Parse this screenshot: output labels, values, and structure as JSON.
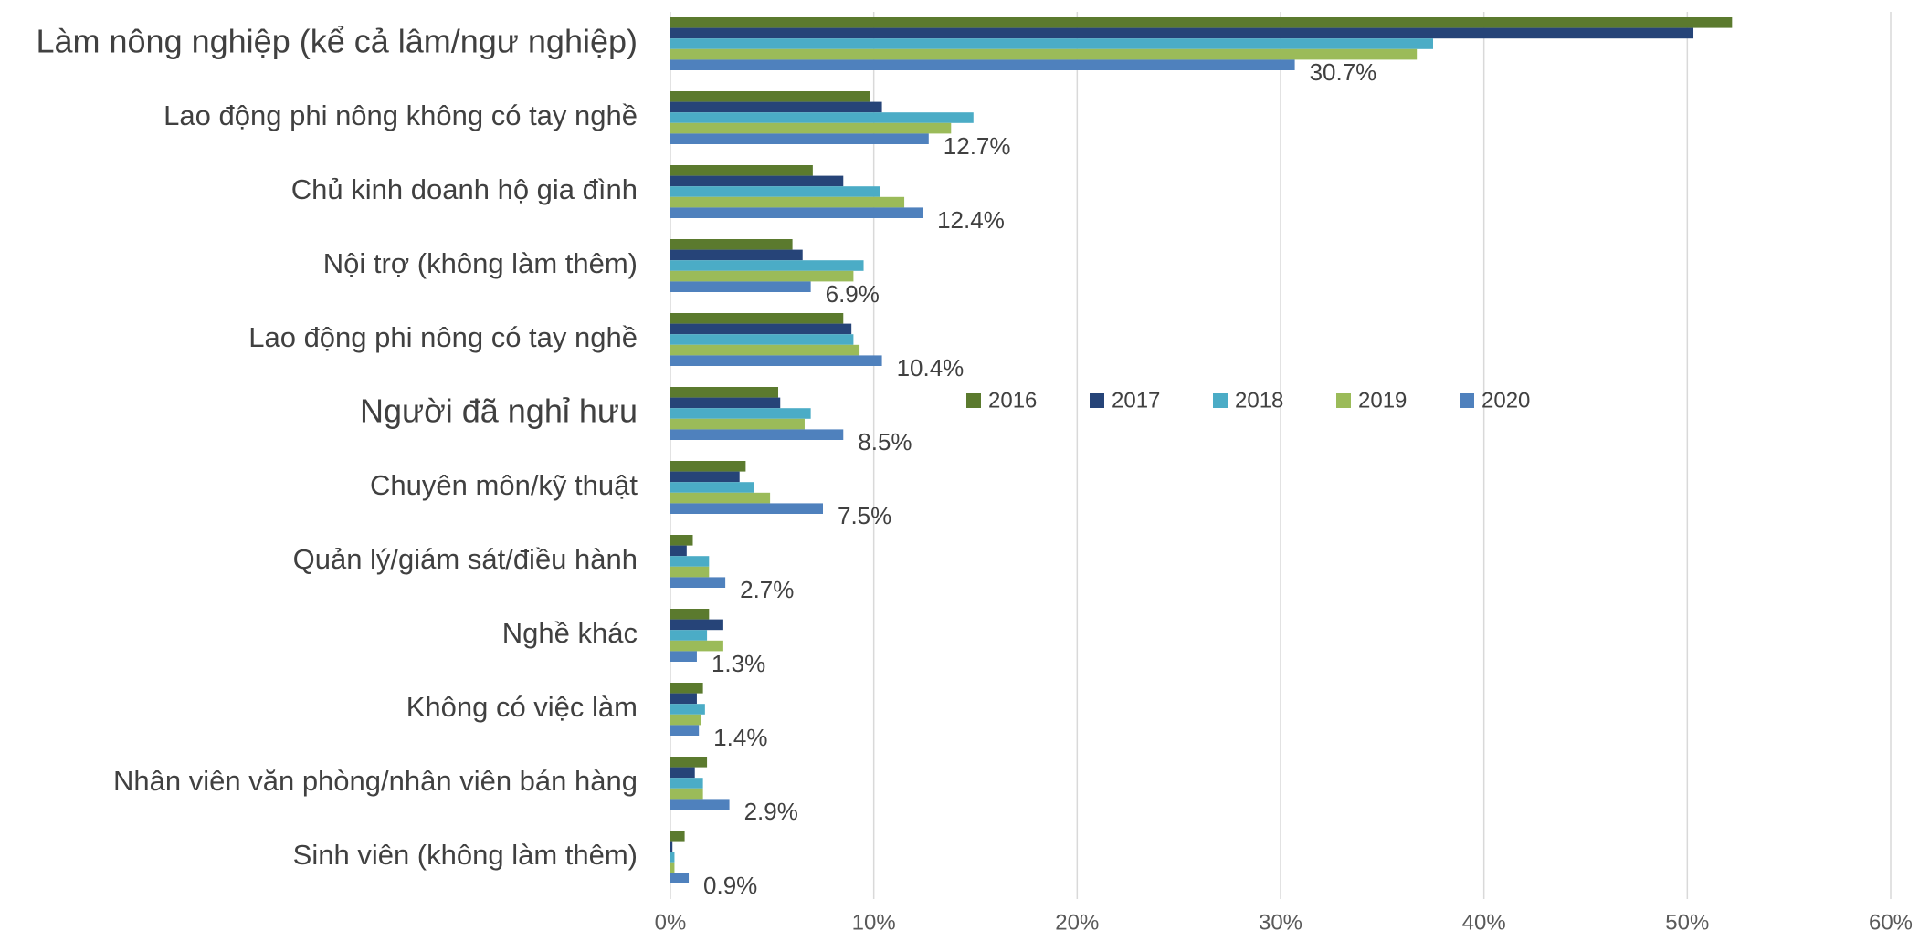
{
  "chart_data": {
    "type": "bar",
    "orientation": "horizontal",
    "categories": [
      "Làm nông nghiệp (kể cả lâm/ngư nghiệp)",
      "Lao động phi nông không có tay nghề",
      "Chủ kinh doanh hộ gia đình",
      "Nội trợ (không làm thêm)",
      "Lao động phi nông có tay nghề",
      "Người đã nghỉ hưu",
      "Chuyên môn/kỹ thuật",
      "Quản lý/giám sát/điều hành",
      "Nghề khác",
      "Không có việc làm",
      "Nhân viên văn phòng/nhân viên bán hàng",
      "Sinh viên (không làm thêm)"
    ],
    "series": [
      {
        "name": "2016",
        "color": "#5b7a2e",
        "values": [
          52.2,
          9.8,
          7.0,
          6.0,
          8.5,
          5.3,
          3.7,
          1.1,
          1.9,
          1.6,
          1.8,
          0.7
        ]
      },
      {
        "name": "2017",
        "color": "#264478",
        "values": [
          50.3,
          10.4,
          8.5,
          6.5,
          8.9,
          5.4,
          3.4,
          0.8,
          2.6,
          1.3,
          1.2,
          0.1
        ]
      },
      {
        "name": "2018",
        "color": "#4bacc6",
        "values": [
          37.5,
          14.9,
          10.3,
          9.5,
          9.0,
          6.9,
          4.1,
          1.9,
          1.8,
          1.7,
          1.6,
          0.2
        ]
      },
      {
        "name": "2019",
        "color": "#9bbb59",
        "values": [
          36.7,
          13.8,
          11.5,
          9.0,
          9.3,
          6.6,
          4.9,
          1.9,
          2.6,
          1.5,
          1.6,
          0.2
        ]
      },
      {
        "name": "2020",
        "color": "#4f81bd",
        "values": [
          30.7,
          12.7,
          12.4,
          6.9,
          10.4,
          8.5,
          7.5,
          2.7,
          1.3,
          1.4,
          2.9,
          0.9
        ],
        "value_labels": [
          "30.7%",
          "12.7%",
          "12.4%",
          "6.9%",
          "10.4%",
          "8.5%",
          "7.5%",
          "2.7%",
          "1.3%",
          "1.4%",
          "2.9%",
          "0.9%"
        ]
      }
    ],
    "xlim": [
      0,
      60
    ],
    "xticks": [
      {
        "value": 0,
        "label": "0%"
      },
      {
        "value": 10,
        "label": "10%"
      },
      {
        "value": 20,
        "label": "20%"
      },
      {
        "value": 30,
        "label": "30%"
      },
      {
        "value": 40,
        "label": "40%"
      },
      {
        "value": 50,
        "label": "50%"
      },
      {
        "value": 60,
        "label": "60%"
      }
    ],
    "grid": true,
    "legend": "center"
  }
}
